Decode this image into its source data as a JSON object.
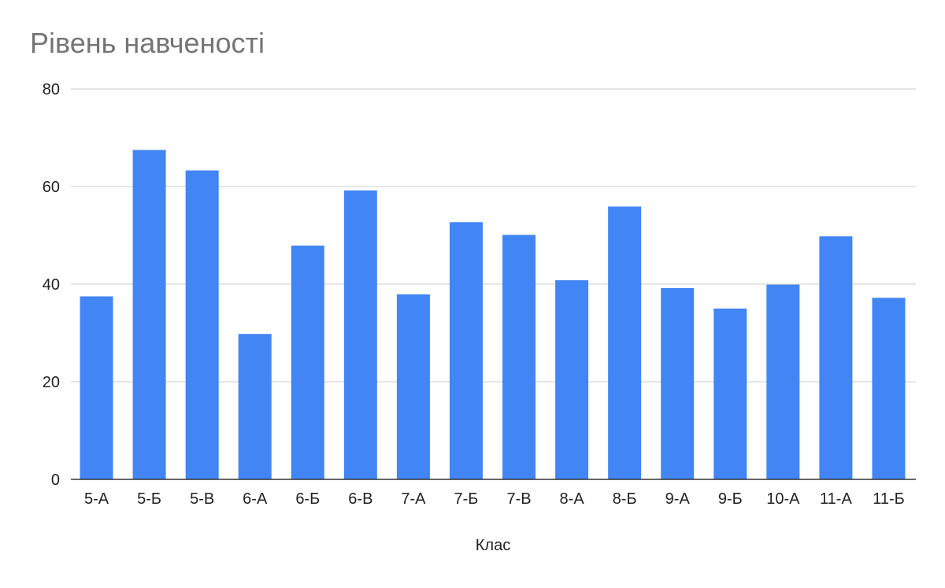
{
  "chart_data": {
    "type": "bar",
    "title": "Рівень навченості",
    "xlabel": "Клас",
    "ylabel": "",
    "categories": [
      "5-А",
      "5-Б",
      "5-В",
      "6-А",
      "6-Б",
      "6-В",
      "7-А",
      "7-Б",
      "7-В",
      "8-А",
      "8-Б",
      "9-А",
      "9-Б",
      "10-А",
      "11-А",
      "11-Б"
    ],
    "values": [
      37.5,
      67.5,
      63.3,
      29.8,
      47.9,
      59.2,
      37.9,
      52.7,
      50.1,
      40.8,
      55.9,
      39.2,
      35.0,
      39.9,
      49.8,
      37.2
    ],
    "ylim": [
      0,
      80
    ],
    "yticks": [
      "0",
      "20",
      "40",
      "60",
      "80"
    ],
    "grid": true,
    "legend": "none",
    "bar_color": "#4285F4",
    "grid_color": "#CCCCCC",
    "axis_color": "#333333",
    "title_color": "#757575",
    "label_color": "#222222"
  }
}
